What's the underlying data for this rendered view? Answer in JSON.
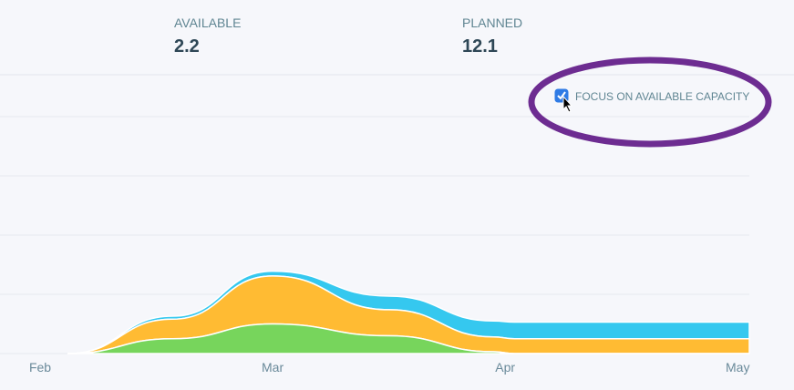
{
  "header": {
    "stats": [
      {
        "label": "AVAILABLE",
        "value": "2.2"
      },
      {
        "label": "PLANNED",
        "value": "12.1"
      }
    ]
  },
  "focus_toggle": {
    "label": "FOCUS ON AVAILABLE CAPACITY",
    "checked": true
  },
  "chart_data": {
    "type": "stacked-area",
    "x": [
      0.12,
      0.57,
      1.0,
      1.5,
      1.95,
      2.04,
      2.5,
      3.05
    ],
    "xlim": [
      0,
      3.05
    ],
    "xticks": [
      {
        "value": 0,
        "label": "Feb"
      },
      {
        "value": 1,
        "label": "Mar"
      },
      {
        "value": 2,
        "label": "Apr"
      },
      {
        "value": 3,
        "label": "May"
      }
    ],
    "ylim": [
      0,
      4
    ],
    "yticks": [
      0,
      1,
      2,
      3,
      4
    ],
    "grid": true,
    "series": [
      {
        "color": "#77d55c",
        "values": [
          0,
          0.25,
          0.5,
          0.3,
          0.03,
          0,
          0,
          0
        ]
      },
      {
        "color": "#ffbb33",
        "values": [
          0,
          0.33,
          0.81,
          0.44,
          0.25,
          0.25,
          0.25,
          0.25
        ]
      },
      {
        "color": "#35c8ef",
        "values": [
          0,
          0.05,
          0.08,
          0.23,
          0.27,
          0.28,
          0.28,
          0.28
        ]
      }
    ]
  }
}
